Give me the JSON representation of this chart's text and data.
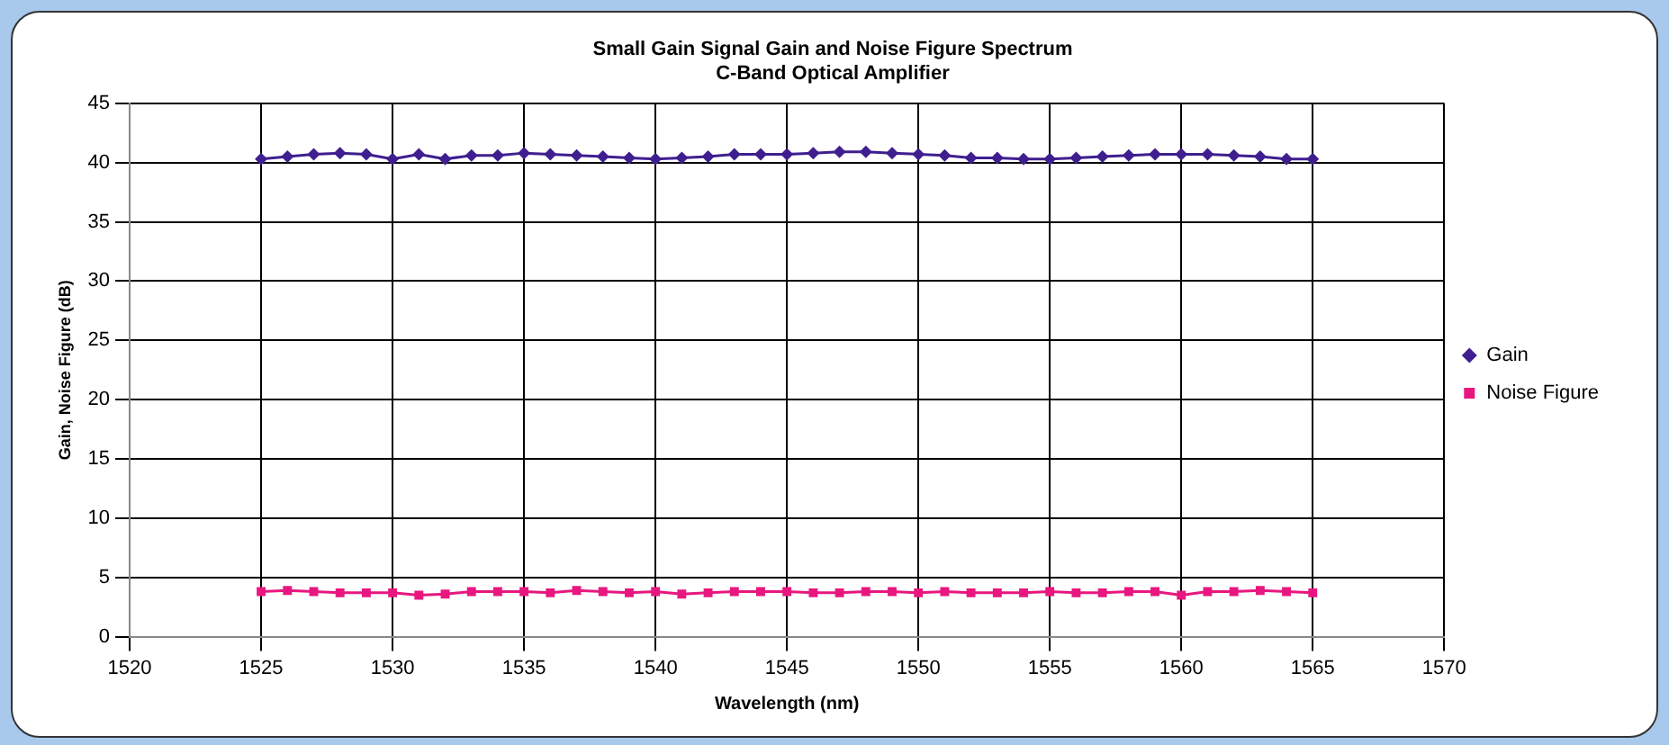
{
  "chart_data": {
    "type": "line",
    "title": "Small Gain Signal Gain and Noise Figure Spectrum",
    "subtitle": "C-Band Optical Amplifier",
    "xlabel": "Wavelength (nm)",
    "ylabel": "Gain, Noise Figure (dB)",
    "x": [
      1525,
      1526,
      1527,
      1528,
      1529,
      1530,
      1531,
      1532,
      1533,
      1534,
      1535,
      1536,
      1537,
      1538,
      1539,
      1540,
      1541,
      1542,
      1543,
      1544,
      1545,
      1546,
      1547,
      1548,
      1549,
      1550,
      1551,
      1552,
      1553,
      1554,
      1555,
      1556,
      1557,
      1558,
      1559,
      1560,
      1561,
      1562,
      1563,
      1564,
      1565
    ],
    "series": [
      {
        "name": "Gain",
        "color": "#3f1f8f",
        "marker": "diamond",
        "values": [
          40.3,
          40.5,
          40.7,
          40.8,
          40.7,
          40.3,
          40.7,
          40.3,
          40.6,
          40.6,
          40.8,
          40.7,
          40.6,
          40.5,
          40.4,
          40.3,
          40.4,
          40.5,
          40.7,
          40.7,
          40.7,
          40.8,
          40.9,
          40.9,
          40.8,
          40.7,
          40.6,
          40.4,
          40.4,
          40.3,
          40.3,
          40.4,
          40.5,
          40.6,
          40.7,
          40.7,
          40.7,
          40.6,
          40.5,
          40.3,
          40.3
        ]
      },
      {
        "name": "Noise Figure",
        "color": "#e8177f",
        "marker": "square",
        "values": [
          3.8,
          3.9,
          3.8,
          3.7,
          3.7,
          3.7,
          3.5,
          3.6,
          3.8,
          3.8,
          3.8,
          3.7,
          3.9,
          3.8,
          3.7,
          3.8,
          3.6,
          3.7,
          3.8,
          3.8,
          3.8,
          3.7,
          3.7,
          3.8,
          3.8,
          3.7,
          3.8,
          3.7,
          3.7,
          3.7,
          3.8,
          3.7,
          3.7,
          3.8,
          3.8,
          3.5,
          3.8,
          3.8,
          3.9,
          3.8,
          3.7
        ]
      }
    ],
    "xlim": [
      1520,
      1570
    ],
    "xticks": [
      1520,
      1525,
      1530,
      1535,
      1540,
      1545,
      1550,
      1555,
      1560,
      1565,
      1570
    ],
    "ylim": [
      0,
      45
    ],
    "yticks": [
      0,
      5,
      10,
      15,
      20,
      25,
      30,
      35,
      40,
      45
    ],
    "grid": true,
    "legend": "right",
    "line_style": "solid"
  }
}
